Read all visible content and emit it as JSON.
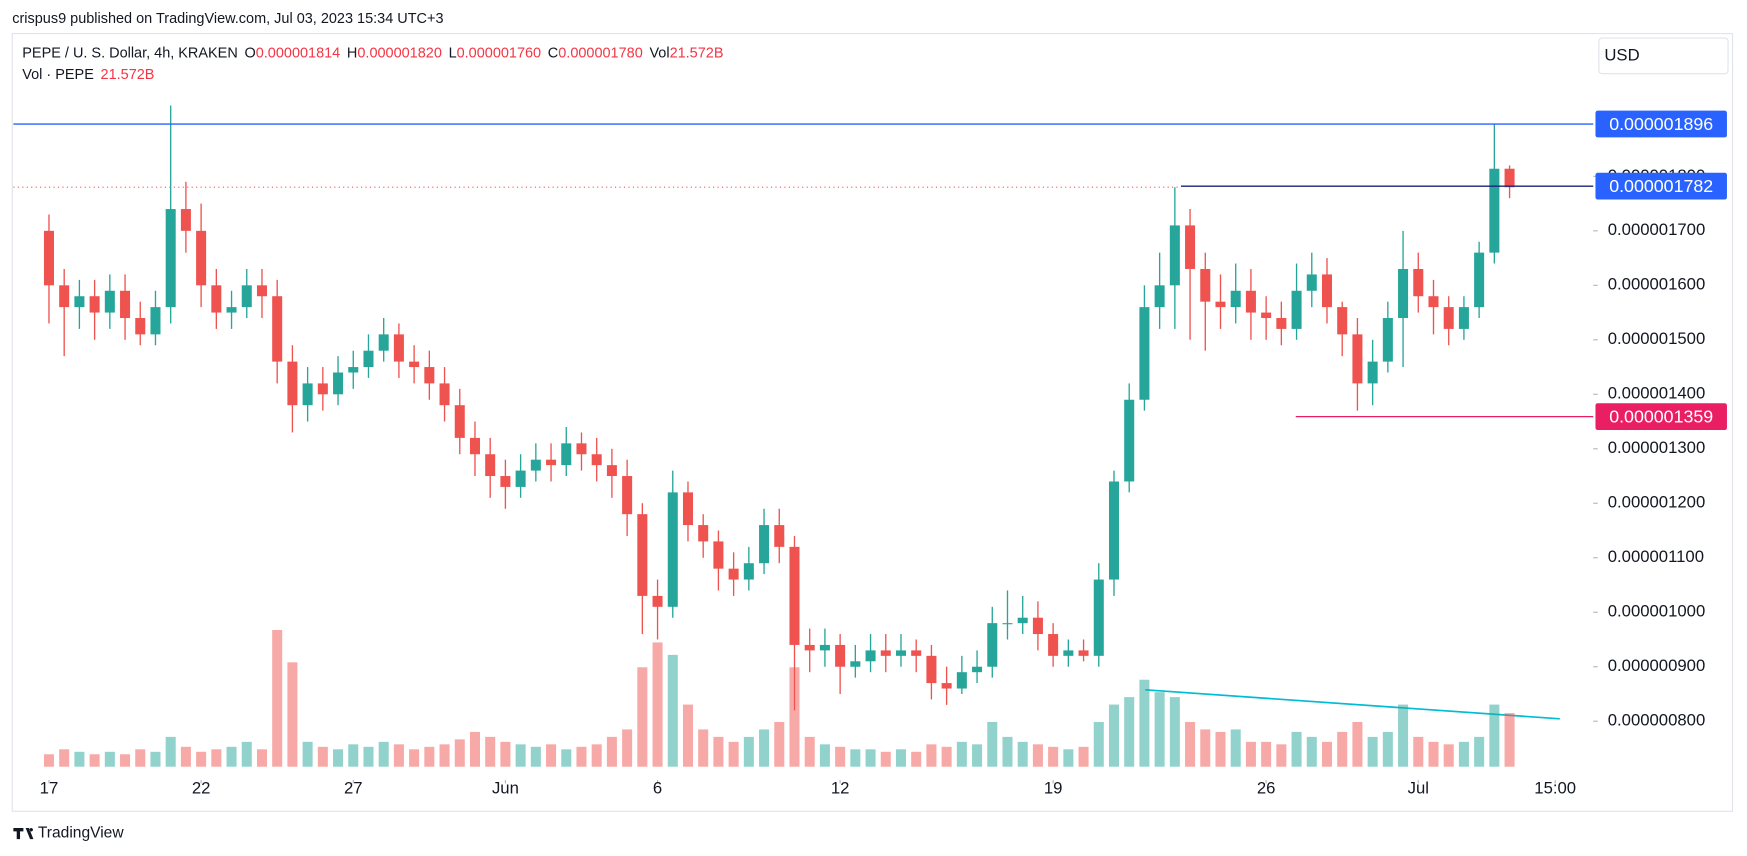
{
  "chart_data": {
    "type": "candlestick",
    "header": "crispus9 published on TradingView.com, Jul 03, 2023 15:34 UTC+3",
    "legend": {
      "symbol": "PEPE / U. S. Dollar, 4h, KRAKEN",
      "items": [
        {
          "label": "O",
          "value": "0.000001814"
        },
        {
          "label": "H",
          "value": "0.000001820"
        },
        {
          "label": "L",
          "value": "0.000001760"
        },
        {
          "label": "C",
          "value": "0.000001780"
        },
        {
          "label": "Vol",
          "value": "21.572B"
        }
      ],
      "volume_name": "Vol · PEPE",
      "volume_value": "21.572B"
    },
    "currency": "USD",
    "brand": "TradingView",
    "up_color": "#26a69a",
    "down_color": "#ef5350",
    "xlim": [
      -2.34,
      101.5
    ],
    "xticks": [
      {
        "value": 0,
        "label": "17"
      },
      {
        "value": 10,
        "label": "22"
      },
      {
        "value": 20,
        "label": "27"
      },
      {
        "value": 30,
        "label": "Jun"
      },
      {
        "value": 40,
        "label": "6"
      },
      {
        "value": 52,
        "label": "12"
      },
      {
        "value": 66,
        "label": "19"
      },
      {
        "value": 80,
        "label": "26"
      },
      {
        "value": 90,
        "label": "Jul"
      },
      {
        "value": 99,
        "label": "15:00"
      }
    ],
    "ylim": [
      6.92e-07,
      2.062e-06
    ],
    "yticks": [
      {
        "value": 8e-07,
        "label": "0.000000800"
      },
      {
        "value": 9e-07,
        "label": "0.000000900"
      },
      {
        "value": 1e-06,
        "label": "0.000001000"
      },
      {
        "value": 1.1e-06,
        "label": "0.000001100"
      },
      {
        "value": 1.2e-06,
        "label": "0.000001200"
      },
      {
        "value": 1.3e-06,
        "label": "0.000001300"
      },
      {
        "value": 1.4e-06,
        "label": "0.000001400"
      },
      {
        "value": 1.5e-06,
        "label": "0.000001500"
      },
      {
        "value": 1.6e-06,
        "label": "0.000001600"
      },
      {
        "value": 1.7e-06,
        "label": "0.000001700"
      },
      {
        "value": 1.8e-06,
        "label": "0.000001800"
      }
    ],
    "horizontal_lines": [
      {
        "value": 1.896e-06,
        "label": "0.000001896",
        "color": "#2962ff"
      },
      {
        "value": 1.782e-06,
        "label": "0.000001782",
        "color": "#1a237e",
        "label_color": "#2962ff"
      },
      {
        "value": 1.359e-06,
        "label": "0.000001359",
        "color": "#e91e63"
      }
    ],
    "volume_lim": [
      0,
      130000000000
    ],
    "open": [
      1.7e-06,
      1.6e-06,
      1.56e-06,
      1.58e-06,
      1.55e-06,
      1.59e-06,
      1.54e-06,
      1.51e-06,
      1.56e-06,
      1.74e-06,
      1.7e-06,
      1.6e-06,
      1.55e-06,
      1.56e-06,
      1.6e-06,
      1.58e-06,
      1.46e-06,
      1.38e-06,
      1.42e-06,
      1.4e-06,
      1.44e-06,
      1.45e-06,
      1.48e-06,
      1.51e-06,
      1.46e-06,
      1.45e-06,
      1.42e-06,
      1.38e-06,
      1.32e-06,
      1.29e-06,
      1.25e-06,
      1.23e-06,
      1.26e-06,
      1.28e-06,
      1.27e-06,
      1.31e-06,
      1.29e-06,
      1.27e-06,
      1.25e-06,
      1.18e-06,
      1.03e-06,
      1.01e-06,
      1.22e-06,
      1.16e-06,
      1.13e-06,
      1.08e-06,
      1.06e-06,
      1.09e-06,
      1.16e-06,
      1.12e-06,
      9.4e-07,
      9.3e-07,
      9.4e-07,
      9e-07,
      9.1e-07,
      9.3e-07,
      9.2e-07,
      9.3e-07,
      9.2e-07,
      8.7e-07,
      8.6e-07,
      8.9e-07,
      9e-07,
      9.8e-07,
      9.8e-07,
      9.9e-07,
      9.6e-07,
      9.2e-07,
      9.3e-07,
      9.2e-07,
      1.06e-06,
      1.24e-06,
      1.39e-06,
      1.56e-06,
      1.6e-06,
      1.71e-06,
      1.63e-06,
      1.57e-06,
      1.56e-06,
      1.59e-06,
      1.55e-06,
      1.54e-06,
      1.52e-06,
      1.59e-06,
      1.62e-06,
      1.56e-06,
      1.51e-06,
      1.42e-06,
      1.46e-06,
      1.54e-06,
      1.63e-06,
      1.58e-06,
      1.56e-06,
      1.52e-06,
      1.56e-06,
      1.66e-06,
      1.814e-06
    ],
    "high": [
      1.73e-06,
      1.63e-06,
      1.61e-06,
      1.61e-06,
      1.62e-06,
      1.62e-06,
      1.57e-06,
      1.59e-06,
      1.93e-06,
      1.79e-06,
      1.75e-06,
      1.63e-06,
      1.59e-06,
      1.63e-06,
      1.63e-06,
      1.61e-06,
      1.49e-06,
      1.45e-06,
      1.45e-06,
      1.47e-06,
      1.48e-06,
      1.51e-06,
      1.54e-06,
      1.53e-06,
      1.49e-06,
      1.48e-06,
      1.45e-06,
      1.41e-06,
      1.35e-06,
      1.32e-06,
      1.28e-06,
      1.29e-06,
      1.31e-06,
      1.31e-06,
      1.34e-06,
      1.33e-06,
      1.32e-06,
      1.3e-06,
      1.28e-06,
      1.2e-06,
      1.06e-06,
      1.26e-06,
      1.24e-06,
      1.18e-06,
      1.15e-06,
      1.11e-06,
      1.12e-06,
      1.19e-06,
      1.19e-06,
      1.14e-06,
      9.7e-07,
      9.7e-07,
      9.6e-07,
      9.4e-07,
      9.6e-07,
      9.6e-07,
      9.6e-07,
      9.5e-07,
      9.4e-07,
      9e-07,
      9.2e-07,
      9.3e-07,
      1.01e-06,
      1.04e-06,
      1.03e-06,
      1.02e-06,
      9.8e-07,
      9.5e-07,
      9.5e-07,
      1.09e-06,
      1.26e-06,
      1.42e-06,
      1.6e-06,
      1.66e-06,
      1.78e-06,
      1.74e-06,
      1.66e-06,
      1.62e-06,
      1.64e-06,
      1.63e-06,
      1.58e-06,
      1.57e-06,
      1.64e-06,
      1.66e-06,
      1.65e-06,
      1.57e-06,
      1.54e-06,
      1.5e-06,
      1.57e-06,
      1.7e-06,
      1.66e-06,
      1.61e-06,
      1.58e-06,
      1.58e-06,
      1.68e-06,
      1.896e-06,
      1.82e-06
    ],
    "low": [
      1.53e-06,
      1.47e-06,
      1.52e-06,
      1.5e-06,
      1.52e-06,
      1.5e-06,
      1.49e-06,
      1.49e-06,
      1.53e-06,
      1.66e-06,
      1.56e-06,
      1.52e-06,
      1.52e-06,
      1.54e-06,
      1.54e-06,
      1.42e-06,
      1.33e-06,
      1.35e-06,
      1.37e-06,
      1.38e-06,
      1.41e-06,
      1.43e-06,
      1.46e-06,
      1.43e-06,
      1.42e-06,
      1.39e-06,
      1.35e-06,
      1.29e-06,
      1.25e-06,
      1.21e-06,
      1.19e-06,
      1.21e-06,
      1.24e-06,
      1.24e-06,
      1.25e-06,
      1.26e-06,
      1.24e-06,
      1.21e-06,
      1.14e-06,
      9.6e-07,
      9.5e-07,
      9.9e-07,
      1.13e-06,
      1.1e-06,
      1.04e-06,
      1.03e-06,
      1.04e-06,
      1.07e-06,
      1.09e-06,
      8.2e-07,
      8.9e-07,
      9e-07,
      8.5e-07,
      8.8e-07,
      8.9e-07,
      8.9e-07,
      9e-07,
      8.9e-07,
      8.4e-07,
      8.3e-07,
      8.5e-07,
      8.7e-07,
      8.8e-07,
      9.5e-07,
      9.6e-07,
      9.3e-07,
      9e-07,
      9e-07,
      9.1e-07,
      9e-07,
      1.03e-06,
      1.22e-06,
      1.37e-06,
      1.52e-06,
      1.52e-06,
      1.5e-06,
      1.48e-06,
      1.52e-06,
      1.53e-06,
      1.5e-06,
      1.5e-06,
      1.49e-06,
      1.5e-06,
      1.56e-06,
      1.53e-06,
      1.47e-06,
      1.37e-06,
      1.38e-06,
      1.44e-06,
      1.45e-06,
      1.55e-06,
      1.51e-06,
      1.49e-06,
      1.5e-06,
      1.54e-06,
      1.64e-06,
      1.76e-06
    ],
    "close": [
      1.6e-06,
      1.56e-06,
      1.58e-06,
      1.55e-06,
      1.59e-06,
      1.54e-06,
      1.51e-06,
      1.56e-06,
      1.74e-06,
      1.7e-06,
      1.6e-06,
      1.55e-06,
      1.56e-06,
      1.6e-06,
      1.58e-06,
      1.46e-06,
      1.38e-06,
      1.42e-06,
      1.4e-06,
      1.44e-06,
      1.45e-06,
      1.48e-06,
      1.51e-06,
      1.46e-06,
      1.45e-06,
      1.42e-06,
      1.38e-06,
      1.32e-06,
      1.29e-06,
      1.25e-06,
      1.23e-06,
      1.26e-06,
      1.28e-06,
      1.27e-06,
      1.31e-06,
      1.29e-06,
      1.27e-06,
      1.25e-06,
      1.18e-06,
      1.03e-06,
      1.01e-06,
      1.22e-06,
      1.16e-06,
      1.13e-06,
      1.08e-06,
      1.06e-06,
      1.09e-06,
      1.16e-06,
      1.12e-06,
      9.4e-07,
      9.3e-07,
      9.4e-07,
      9e-07,
      9.1e-07,
      9.3e-07,
      9.2e-07,
      9.3e-07,
      9.2e-07,
      8.7e-07,
      8.6e-07,
      8.9e-07,
      9e-07,
      9.8e-07,
      9.8e-07,
      9.9e-07,
      9.6e-07,
      9.2e-07,
      9.3e-07,
      9.2e-07,
      1.06e-06,
      1.24e-06,
      1.39e-06,
      1.56e-06,
      1.6e-06,
      1.71e-06,
      1.63e-06,
      1.57e-06,
      1.56e-06,
      1.59e-06,
      1.55e-06,
      1.54e-06,
      1.52e-06,
      1.59e-06,
      1.62e-06,
      1.56e-06,
      1.51e-06,
      1.42e-06,
      1.46e-06,
      1.54e-06,
      1.63e-06,
      1.58e-06,
      1.56e-06,
      1.52e-06,
      1.56e-06,
      1.66e-06,
      1.814e-06,
      1.78e-06
    ],
    "volume": [
      5000000000.0,
      7000000000.0,
      6000000000.0,
      5000000000.0,
      6000000000.0,
      5000000000.0,
      7000000000.0,
      6000000000.0,
      12000000000.0,
      8000000000.0,
      6000000000.0,
      7000000000.0,
      8000000000.0,
      10000000000.0,
      7000000000.0,
      55000000000.0,
      42000000000.0,
      10000000000.0,
      8000000000.0,
      7000000000.0,
      9000000000.0,
      8000000000.0,
      10000000000.0,
      9000000000.0,
      7000000000.0,
      8000000000.0,
      9000000000.0,
      11000000000.0,
      14000000000.0,
      12000000000.0,
      10000000000.0,
      9000000000.0,
      8000000000.0,
      9000000000.0,
      7000000000.0,
      8000000000.0,
      9000000000.0,
      12000000000.0,
      15000000000.0,
      40000000000.0,
      50000000000.0,
      45000000000.0,
      25000000000.0,
      15000000000.0,
      12000000000.0,
      10000000000.0,
      12000000000.0,
      15000000000.0,
      18000000000.0,
      40000000000.0,
      12000000000.0,
      9000000000.0,
      8000000000.0,
      7000000000.0,
      7000000000.0,
      6000000000.0,
      7000000000.0,
      6000000000.0,
      9000000000.0,
      8000000000.0,
      10000000000.0,
      9000000000.0,
      18000000000.0,
      12000000000.0,
      10000000000.0,
      9000000000.0,
      8000000000.0,
      7000000000.0,
      8000000000.0,
      18000000000.0,
      25000000000.0,
      28000000000.0,
      35000000000.0,
      30000000000.0,
      28000000000.0,
      18000000000.0,
      15000000000.0,
      14000000000.0,
      15000000000.0,
      10000000000.0,
      10000000000.0,
      9000000000.0,
      14000000000.0,
      12000000000.0,
      10000000000.0,
      14000000000.0,
      18000000000.0,
      12000000000.0,
      14000000000.0,
      25000000000.0,
      12000000000.0,
      10000000000.0,
      9000000000.0,
      10000000000.0,
      12000000000.0,
      25000000000.0,
      21572000000
    ]
  }
}
